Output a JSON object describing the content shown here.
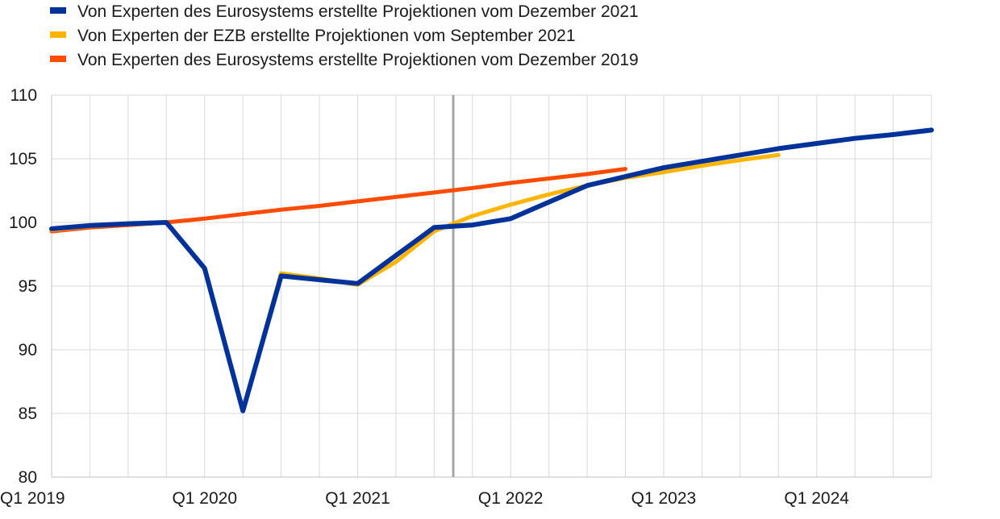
{
  "chart_data": {
    "type": "line",
    "title": "",
    "xlabel": "",
    "ylabel": "",
    "ylim": [
      80,
      110
    ],
    "y_ticks": [
      80,
      85,
      90,
      95,
      100,
      105,
      110
    ],
    "grid": true,
    "legend_position": "top-left",
    "x_tick_labels": [
      {
        "label": "Q1 2019",
        "quarter_index": 0
      },
      {
        "label": "Q1 2020",
        "quarter_index": 4
      },
      {
        "label": "Q1 2021",
        "quarter_index": 8
      },
      {
        "label": "Q1 2022",
        "quarter_index": 12
      },
      {
        "label": "Q1 2023",
        "quarter_index": 16
      },
      {
        "label": "Q1 2024",
        "quarter_index": 20
      }
    ],
    "x_range_quarters": [
      0,
      23
    ],
    "projection_start_quarter": 10.5,
    "projection_marker_color": "#a6a6a6",
    "series": [
      {
        "name": "Von Experten des Eurosystems erstellte Projektionen vom Dezember 2019",
        "color": "#ff4b00",
        "x": [
          0,
          1,
          2,
          3,
          4,
          5,
          6,
          7,
          8,
          9,
          10,
          11,
          12,
          13,
          14,
          15
        ],
        "values": [
          99.3,
          99.6,
          99.8,
          100.0,
          100.3,
          100.65,
          101.0,
          101.3,
          101.65,
          102.0,
          102.35,
          102.7,
          103.1,
          103.45,
          103.8,
          104.2
        ]
      },
      {
        "name": "Von Experten der EZB erstellte Projektionen vom September 2021",
        "color": "#ffb400",
        "x": [
          0,
          1,
          2,
          3,
          4,
          5,
          6,
          7,
          8,
          9,
          10,
          11,
          12,
          13,
          14,
          15,
          16,
          17,
          18,
          19
        ],
        "values": [
          99.4,
          99.7,
          99.9,
          100.0,
          96.4,
          85.2,
          96.0,
          95.6,
          95.1,
          96.9,
          99.3,
          100.5,
          101.4,
          102.2,
          102.9,
          103.5,
          103.95,
          104.45,
          104.9,
          105.3
        ]
      },
      {
        "name": "Von Experten des Eurosystems erstellte Projektionen vom Dezember 2021",
        "color": "#003299",
        "x": [
          0,
          1,
          2,
          3,
          4,
          5,
          6,
          7,
          8,
          9,
          10,
          11,
          12,
          13,
          14,
          15,
          16,
          17,
          18,
          19,
          20,
          21,
          22,
          23
        ],
        "values": [
          99.5,
          99.75,
          99.9,
          100.0,
          96.4,
          85.2,
          95.8,
          95.5,
          95.2,
          97.4,
          99.6,
          99.8,
          100.3,
          101.6,
          102.9,
          103.6,
          104.3,
          104.8,
          105.3,
          105.8,
          106.2,
          106.6,
          106.9,
          107.25
        ]
      }
    ],
    "legend": [
      {
        "label": "Von Experten des Eurosystems erstellte Projektionen vom Dezember 2021",
        "color": "#003299"
      },
      {
        "label": "Von Experten der EZB erstellte Projektionen vom September 2021",
        "color": "#ffb400"
      },
      {
        "label": "Von Experten des Eurosystems erstellte Projektionen vom Dezember 2019",
        "color": "#ff4b00"
      }
    ]
  }
}
